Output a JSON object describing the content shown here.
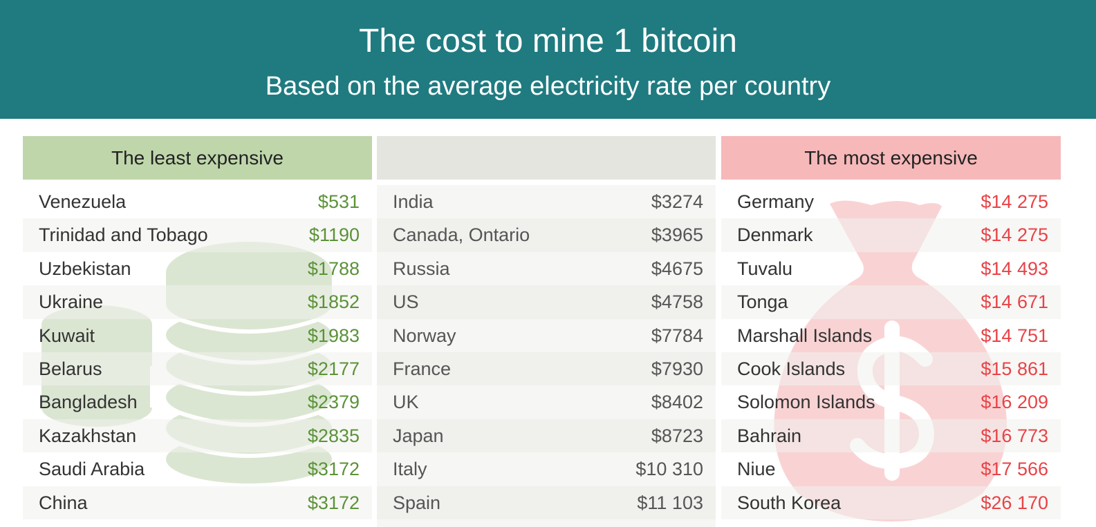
{
  "header": {
    "title": "The cost to mine 1 bitcoin",
    "subtitle": "Based on the average electricity rate per country"
  },
  "columns": [
    {
      "header": "The least expensive",
      "rows": [
        {
          "country": "Venezuela",
          "value": "$531"
        },
        {
          "country": "Trinidad and Tobago",
          "value": "$1190"
        },
        {
          "country": "Uzbekistan",
          "value": "$1788"
        },
        {
          "country": "Ukraine",
          "value": "$1852"
        },
        {
          "country": "Kuwait",
          "value": "$1983"
        },
        {
          "country": "Belarus",
          "value": "$2177"
        },
        {
          "country": "Bangladesh",
          "value": "$2379"
        },
        {
          "country": "Kazakhstan",
          "value": "$2835"
        },
        {
          "country": "Saudi Arabia",
          "value": "$3172"
        },
        {
          "country": "China",
          "value": "$3172"
        }
      ]
    },
    {
      "header": "",
      "rows": [
        {
          "country": "India",
          "value": "$3274"
        },
        {
          "country": "Canada, Ontario",
          "value": "$3965"
        },
        {
          "country": "Russia",
          "value": "$4675"
        },
        {
          "country": "US",
          "value": "$4758"
        },
        {
          "country": "Norway",
          "value": "$7784"
        },
        {
          "country": "France",
          "value": "$7930"
        },
        {
          "country": "UK",
          "value": "$8402"
        },
        {
          "country": "Japan",
          "value": "$8723"
        },
        {
          "country": "Italy",
          "value": "$10 310"
        },
        {
          "country": "Spain",
          "value": "$11 103"
        }
      ]
    },
    {
      "header": "The most expensive",
      "rows": [
        {
          "country": "Germany",
          "value": "$14 275"
        },
        {
          "country": "Denmark",
          "value": "$14 275"
        },
        {
          "country": "Tuvalu",
          "value": "$14 493"
        },
        {
          "country": "Tonga",
          "value": "$14 671"
        },
        {
          "country": "Marshall Islands",
          "value": "$14 751"
        },
        {
          "country": "Cook Islands",
          "value": "$15 861"
        },
        {
          "country": "Solomon Islands",
          "value": "$16 209"
        },
        {
          "country": "Bahrain",
          "value": "$16 773"
        },
        {
          "country": "Niue",
          "value": "$17 566"
        },
        {
          "country": "South Korea",
          "value": "$26 170"
        }
      ]
    }
  ],
  "chart_data": {
    "type": "table",
    "title": "The cost to mine 1 bitcoin",
    "subtitle": "Based on the average electricity rate per country",
    "columns": [
      "The least expensive",
      "",
      "The most expensive"
    ],
    "groups": [
      {
        "name": "The least expensive",
        "categories": [
          "Venezuela",
          "Trinidad and Tobago",
          "Uzbekistan",
          "Ukraine",
          "Kuwait",
          "Belarus",
          "Bangladesh",
          "Kazakhstan",
          "Saudi Arabia",
          "China"
        ],
        "values": [
          531,
          1190,
          1788,
          1852,
          1983,
          2177,
          2379,
          2835,
          3172,
          3172
        ]
      },
      {
        "name": "",
        "categories": [
          "India",
          "Canada, Ontario",
          "Russia",
          "US",
          "Norway",
          "France",
          "UK",
          "Japan",
          "Italy",
          "Spain"
        ],
        "values": [
          3274,
          3965,
          4675,
          4758,
          7784,
          7930,
          8402,
          8723,
          10310,
          11103
        ]
      },
      {
        "name": "The most expensive",
        "categories": [
          "Germany",
          "Denmark",
          "Tuvalu",
          "Tonga",
          "Marshall Islands",
          "Cook Islands",
          "Solomon Islands",
          "Bahrain",
          "Niue",
          "South Korea"
        ],
        "values": [
          14275,
          14275,
          14493,
          14671,
          14751,
          15861,
          16209,
          16773,
          17566,
          26170
        ]
      }
    ]
  },
  "colors": {
    "banner": "#1f7b80",
    "least_header": "#bfd6ab",
    "mid_header": "#e4e5df",
    "most_header": "#f6b8b9",
    "least_value": "#5b9238",
    "most_value": "#e84347",
    "coins_decoration": "#dbe6d2",
    "bag_decoration": "#f9d3d4"
  },
  "decorations": {
    "left": "coin-stack-icon",
    "right": "money-bag-icon"
  }
}
